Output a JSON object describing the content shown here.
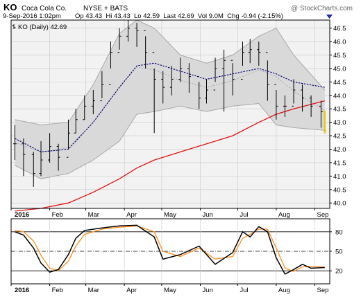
{
  "header": {
    "symbol": "KO",
    "company": "Coca Cola Co.",
    "exchange": "NYSE + BATS",
    "watermark": "@ StockCharts.com",
    "date": "9-Sep-2016 1:02pm",
    "quote": "Op 43.43  Hi 43.43  Lo 42.59  Last 42.69  Vol 9.0M  Chg -0.94 (-2.15%)"
  },
  "colors": {
    "band_fill": "#d9d9d9",
    "band_edge": "#a8a8a8",
    "ma_short": "#00007a",
    "ma_long": "#dd1111",
    "candle": "#000000",
    "last_bar": "#e8c800",
    "stoch_k": "#000000",
    "stoch_d": "#ff8c1a",
    "down_arrow": "#1c2aa8"
  },
  "chart_data": [
    {
      "type": "candlestick",
      "title": "KO (Daily) 42.69",
      "legend": "KO (Daily) 42.69",
      "legend_position": "top-left",
      "ylim": [
        39.8,
        46.8
      ],
      "yticks": [
        "46.5",
        "46.0",
        "45.5",
        "45.0",
        "44.5",
        "44.0",
        "43.5",
        "43.0",
        "42.5",
        "42.0",
        "41.5",
        "41.0",
        "40.5",
        "40.0"
      ],
      "x_labels": [
        "2016",
        "Feb",
        "Mar",
        "Apr",
        "May",
        "Jun",
        "Jul",
        "Aug",
        "Sep"
      ],
      "grid": true,
      "close": [
        {
          "date": "2016-01-04",
          "value": 42.2
        },
        {
          "date": "2016-01-11",
          "value": 41.8
        },
        {
          "date": "2016-01-19",
          "value": 41.1
        },
        {
          "date": "2016-01-25",
          "value": 41.6
        },
        {
          "date": "2016-02-01",
          "value": 42.1
        },
        {
          "date": "2016-02-08",
          "value": 41.7
        },
        {
          "date": "2016-02-16",
          "value": 42.6
        },
        {
          "date": "2016-02-22",
          "value": 43.1
        },
        {
          "date": "2016-02-29",
          "value": 43.6
        },
        {
          "date": "2016-03-07",
          "value": 43.8
        },
        {
          "date": "2016-03-14",
          "value": 44.4
        },
        {
          "date": "2016-03-21",
          "value": 45.6
        },
        {
          "date": "2016-03-28",
          "value": 46.2
        },
        {
          "date": "2016-04-04",
          "value": 46.5
        },
        {
          "date": "2016-04-11",
          "value": 46.4
        },
        {
          "date": "2016-04-18",
          "value": 45.6
        },
        {
          "date": "2016-04-25",
          "value": 44.6
        },
        {
          "date": "2016-05-02",
          "value": 44.3
        },
        {
          "date": "2016-05-09",
          "value": 44.6
        },
        {
          "date": "2016-05-16",
          "value": 45.0
        },
        {
          "date": "2016-05-23",
          "value": 44.7
        },
        {
          "date": "2016-05-31",
          "value": 43.9
        },
        {
          "date": "2016-06-06",
          "value": 44.2
        },
        {
          "date": "2016-06-13",
          "value": 45.0
        },
        {
          "date": "2016-06-20",
          "value": 45.3
        },
        {
          "date": "2016-06-27",
          "value": 44.6
        },
        {
          "date": "2016-07-05",
          "value": 45.6
        },
        {
          "date": "2016-07-11",
          "value": 45.7
        },
        {
          "date": "2016-07-18",
          "value": 45.6
        },
        {
          "date": "2016-07-25",
          "value": 44.4
        },
        {
          "date": "2016-08-01",
          "value": 43.6
        },
        {
          "date": "2016-08-08",
          "value": 43.6
        },
        {
          "date": "2016-08-15",
          "value": 44.2
        },
        {
          "date": "2016-08-22",
          "value": 43.9
        },
        {
          "date": "2016-08-29",
          "value": 43.6
        },
        {
          "date": "2016-09-06",
          "value": 43.4
        },
        {
          "date": "2016-09-09",
          "value": 42.69
        }
      ],
      "high": [
        {
          "date": "2016-01-04",
          "value": 42.9
        },
        {
          "date": "2016-01-11",
          "value": 42.4
        },
        {
          "date": "2016-01-19",
          "value": 41.9
        },
        {
          "date": "2016-01-25",
          "value": 42.3
        },
        {
          "date": "2016-02-01",
          "value": 42.6
        },
        {
          "date": "2016-02-08",
          "value": 42.2
        },
        {
          "date": "2016-02-16",
          "value": 43.1
        },
        {
          "date": "2016-02-22",
          "value": 43.5
        },
        {
          "date": "2016-02-29",
          "value": 44.0
        },
        {
          "date": "2016-03-07",
          "value": 44.2
        },
        {
          "date": "2016-03-14",
          "value": 44.9
        },
        {
          "date": "2016-03-21",
          "value": 46.0
        },
        {
          "date": "2016-03-28",
          "value": 46.5
        },
        {
          "date": "2016-04-04",
          "value": 46.8
        },
        {
          "date": "2016-04-11",
          "value": 46.7
        },
        {
          "date": "2016-04-18",
          "value": 46.2
        },
        {
          "date": "2016-04-25",
          "value": 45.0
        },
        {
          "date": "2016-05-02",
          "value": 44.9
        },
        {
          "date": "2016-05-09",
          "value": 45.1
        },
        {
          "date": "2016-05-16",
          "value": 45.4
        },
        {
          "date": "2016-05-23",
          "value": 45.2
        },
        {
          "date": "2016-05-31",
          "value": 44.5
        },
        {
          "date": "2016-06-06",
          "value": 44.6
        },
        {
          "date": "2016-06-13",
          "value": 45.4
        },
        {
          "date": "2016-06-20",
          "value": 45.7
        },
        {
          "date": "2016-06-27",
          "value": 45.2
        },
        {
          "date": "2016-07-05",
          "value": 46.0
        },
        {
          "date": "2016-07-11",
          "value": 46.1
        },
        {
          "date": "2016-07-18",
          "value": 46.0
        },
        {
          "date": "2016-07-25",
          "value": 45.3
        },
        {
          "date": "2016-08-01",
          "value": 44.2
        },
        {
          "date": "2016-08-08",
          "value": 44.0
        },
        {
          "date": "2016-08-15",
          "value": 44.6
        },
        {
          "date": "2016-08-22",
          "value": 44.4
        },
        {
          "date": "2016-08-29",
          "value": 44.0
        },
        {
          "date": "2016-09-06",
          "value": 43.8
        },
        {
          "date": "2016-09-09",
          "value": 43.43
        }
      ],
      "low": [
        {
          "date": "2016-01-04",
          "value": 41.6
        },
        {
          "date": "2016-01-11",
          "value": 41.0
        },
        {
          "date": "2016-01-19",
          "value": 40.6
        },
        {
          "date": "2016-01-25",
          "value": 41.0
        },
        {
          "date": "2016-02-01",
          "value": 41.5
        },
        {
          "date": "2016-02-08",
          "value": 41.2
        },
        {
          "date": "2016-02-16",
          "value": 42.0
        },
        {
          "date": "2016-02-22",
          "value": 42.6
        },
        {
          "date": "2016-02-29",
          "value": 43.1
        },
        {
          "date": "2016-03-07",
          "value": 43.3
        },
        {
          "date": "2016-03-14",
          "value": 43.9
        },
        {
          "date": "2016-03-21",
          "value": 45.0
        },
        {
          "date": "2016-03-28",
          "value": 45.7
        },
        {
          "date": "2016-04-04",
          "value": 46.0
        },
        {
          "date": "2016-04-11",
          "value": 45.8
        },
        {
          "date": "2016-04-18",
          "value": 45.0
        },
        {
          "date": "2016-04-25",
          "value": 42.6
        },
        {
          "date": "2016-05-02",
          "value": 43.7
        },
        {
          "date": "2016-05-09",
          "value": 44.0
        },
        {
          "date": "2016-05-16",
          "value": 44.5
        },
        {
          "date": "2016-05-23",
          "value": 44.1
        },
        {
          "date": "2016-05-31",
          "value": 43.5
        },
        {
          "date": "2016-06-06",
          "value": 43.7
        },
        {
          "date": "2016-06-13",
          "value": 44.5
        },
        {
          "date": "2016-06-20",
          "value": 43.4
        },
        {
          "date": "2016-06-27",
          "value": 44.0
        },
        {
          "date": "2016-07-05",
          "value": 45.1
        },
        {
          "date": "2016-07-11",
          "value": 45.2
        },
        {
          "date": "2016-07-18",
          "value": 45.1
        },
        {
          "date": "2016-07-25",
          "value": 43.8
        },
        {
          "date": "2016-08-01",
          "value": 43.1
        },
        {
          "date": "2016-08-08",
          "value": 43.2
        },
        {
          "date": "2016-08-15",
          "value": 43.7
        },
        {
          "date": "2016-08-22",
          "value": 43.4
        },
        {
          "date": "2016-08-29",
          "value": 43.2
        },
        {
          "date": "2016-09-06",
          "value": 42.8
        },
        {
          "date": "2016-09-09",
          "value": 42.59
        }
      ],
      "bollinger_upper": [
        {
          "date": "2016-01-04",
          "value": 43.1
        },
        {
          "date": "2016-01-25",
          "value": 42.9
        },
        {
          "date": "2016-02-16",
          "value": 43.0
        },
        {
          "date": "2016-03-07",
          "value": 44.4
        },
        {
          "date": "2016-03-28",
          "value": 46.3
        },
        {
          "date": "2016-04-11",
          "value": 46.8
        },
        {
          "date": "2016-04-25",
          "value": 46.5
        },
        {
          "date": "2016-05-16",
          "value": 45.5
        },
        {
          "date": "2016-06-06",
          "value": 45.2
        },
        {
          "date": "2016-06-27",
          "value": 45.5
        },
        {
          "date": "2016-07-18",
          "value": 46.2
        },
        {
          "date": "2016-08-01",
          "value": 46.5
        },
        {
          "date": "2016-08-15",
          "value": 45.5
        },
        {
          "date": "2016-09-09",
          "value": 44.2
        }
      ],
      "bollinger_lower": [
        {
          "date": "2016-01-04",
          "value": 41.4
        },
        {
          "date": "2016-01-25",
          "value": 40.9
        },
        {
          "date": "2016-02-16",
          "value": 41.1
        },
        {
          "date": "2016-03-07",
          "value": 41.6
        },
        {
          "date": "2016-03-28",
          "value": 42.3
        },
        {
          "date": "2016-04-11",
          "value": 43.3
        },
        {
          "date": "2016-04-25",
          "value": 43.4
        },
        {
          "date": "2016-05-16",
          "value": 43.6
        },
        {
          "date": "2016-06-06",
          "value": 43.4
        },
        {
          "date": "2016-06-27",
          "value": 43.6
        },
        {
          "date": "2016-07-18",
          "value": 43.7
        },
        {
          "date": "2016-08-01",
          "value": 42.9
        },
        {
          "date": "2016-08-15",
          "value": 42.8
        },
        {
          "date": "2016-09-09",
          "value": 42.7
        }
      ],
      "ma_short": [
        {
          "date": "2016-01-04",
          "value": 42.4
        },
        {
          "date": "2016-01-25",
          "value": 41.9
        },
        {
          "date": "2016-02-16",
          "value": 42.0
        },
        {
          "date": "2016-03-07",
          "value": 43.0
        },
        {
          "date": "2016-03-28",
          "value": 44.3
        },
        {
          "date": "2016-04-11",
          "value": 45.1
        },
        {
          "date": "2016-04-25",
          "value": 45.2
        },
        {
          "date": "2016-05-16",
          "value": 44.9
        },
        {
          "date": "2016-06-06",
          "value": 44.6
        },
        {
          "date": "2016-06-27",
          "value": 44.8
        },
        {
          "date": "2016-07-18",
          "value": 45.0
        },
        {
          "date": "2016-08-01",
          "value": 44.8
        },
        {
          "date": "2016-08-15",
          "value": 44.5
        },
        {
          "date": "2016-09-09",
          "value": 44.3
        }
      ],
      "ma_long": [
        {
          "date": "2016-01-04",
          "value": 39.7
        },
        {
          "date": "2016-01-25",
          "value": 39.8
        },
        {
          "date": "2016-02-16",
          "value": 40.0
        },
        {
          "date": "2016-03-07",
          "value": 40.4
        },
        {
          "date": "2016-03-28",
          "value": 40.9
        },
        {
          "date": "2016-04-11",
          "value": 41.3
        },
        {
          "date": "2016-04-25",
          "value": 41.6
        },
        {
          "date": "2016-05-16",
          "value": 41.9
        },
        {
          "date": "2016-06-06",
          "value": 42.2
        },
        {
          "date": "2016-06-27",
          "value": 42.5
        },
        {
          "date": "2016-07-18",
          "value": 43.0
        },
        {
          "date": "2016-08-01",
          "value": 43.3
        },
        {
          "date": "2016-08-15",
          "value": 43.5
        },
        {
          "date": "2016-09-09",
          "value": 43.8
        }
      ]
    },
    {
      "type": "line",
      "title": "",
      "ylim": [
        0,
        100
      ],
      "yticks": [
        "80",
        "50",
        "20"
      ],
      "x_labels": [
        "2016",
        "Feb",
        "Mar",
        "Apr",
        "May",
        "Jun",
        "Jul",
        "Aug",
        "Sep"
      ],
      "grid": true,
      "series": [
        {
          "name": "",
          "color": "#000000",
          "values": [
            {
              "date": "2016-01-04",
              "value": 80
            },
            {
              "date": "2016-01-11",
              "value": 75
            },
            {
              "date": "2016-01-19",
              "value": 55
            },
            {
              "date": "2016-01-25",
              "value": 32
            },
            {
              "date": "2016-02-01",
              "value": 18
            },
            {
              "date": "2016-02-08",
              "value": 22
            },
            {
              "date": "2016-02-16",
              "value": 45
            },
            {
              "date": "2016-02-22",
              "value": 70
            },
            {
              "date": "2016-02-29",
              "value": 82
            },
            {
              "date": "2016-03-14",
              "value": 86
            },
            {
              "date": "2016-03-28",
              "value": 89
            },
            {
              "date": "2016-04-11",
              "value": 90
            },
            {
              "date": "2016-04-25",
              "value": 72
            },
            {
              "date": "2016-05-02",
              "value": 38
            },
            {
              "date": "2016-05-16",
              "value": 45
            },
            {
              "date": "2016-05-31",
              "value": 58
            },
            {
              "date": "2016-06-13",
              "value": 30
            },
            {
              "date": "2016-06-27",
              "value": 48
            },
            {
              "date": "2016-07-05",
              "value": 80
            },
            {
              "date": "2016-07-11",
              "value": 72
            },
            {
              "date": "2016-07-18",
              "value": 88
            },
            {
              "date": "2016-07-25",
              "value": 80
            },
            {
              "date": "2016-08-01",
              "value": 40
            },
            {
              "date": "2016-08-08",
              "value": 15
            },
            {
              "date": "2016-08-15",
              "value": 22
            },
            {
              "date": "2016-08-22",
              "value": 30
            },
            {
              "date": "2016-08-29",
              "value": 24
            },
            {
              "date": "2016-09-09",
              "value": 25
            }
          ]
        },
        {
          "name": "",
          "color": "#ff8c1a",
          "values": [
            {
              "date": "2016-01-04",
              "value": 82
            },
            {
              "date": "2016-01-11",
              "value": 80
            },
            {
              "date": "2016-01-19",
              "value": 66
            },
            {
              "date": "2016-01-25",
              "value": 44
            },
            {
              "date": "2016-02-01",
              "value": 24
            },
            {
              "date": "2016-02-08",
              "value": 20
            },
            {
              "date": "2016-02-16",
              "value": 35
            },
            {
              "date": "2016-02-22",
              "value": 58
            },
            {
              "date": "2016-02-29",
              "value": 76
            },
            {
              "date": "2016-03-14",
              "value": 84
            },
            {
              "date": "2016-03-28",
              "value": 87
            },
            {
              "date": "2016-04-11",
              "value": 89
            },
            {
              "date": "2016-04-25",
              "value": 80
            },
            {
              "date": "2016-05-02",
              "value": 50
            },
            {
              "date": "2016-05-16",
              "value": 42
            },
            {
              "date": "2016-05-31",
              "value": 55
            },
            {
              "date": "2016-06-13",
              "value": 38
            },
            {
              "date": "2016-06-27",
              "value": 42
            },
            {
              "date": "2016-07-05",
              "value": 70
            },
            {
              "date": "2016-07-11",
              "value": 76
            },
            {
              "date": "2016-07-18",
              "value": 84
            },
            {
              "date": "2016-07-25",
              "value": 84
            },
            {
              "date": "2016-08-01",
              "value": 55
            },
            {
              "date": "2016-08-08",
              "value": 24
            },
            {
              "date": "2016-08-15",
              "value": 19
            },
            {
              "date": "2016-08-22",
              "value": 26
            },
            {
              "date": "2016-08-29",
              "value": 27
            },
            {
              "date": "2016-09-09",
              "value": 26
            }
          ]
        }
      ],
      "reference_lines": [
        80,
        50,
        20
      ]
    }
  ]
}
